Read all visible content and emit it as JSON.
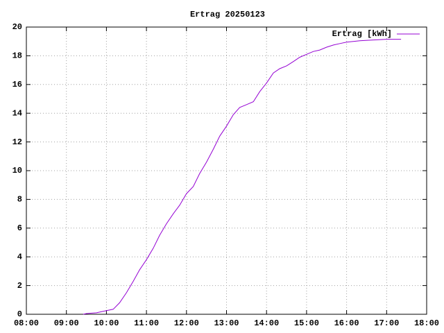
{
  "chart_data": {
    "type": "line",
    "title": "Ertrag 20250123",
    "x": [
      9.42,
      9.5,
      9.75,
      10.0,
      10.17,
      10.33,
      10.5,
      10.67,
      10.83,
      11.0,
      11.17,
      11.33,
      11.5,
      11.67,
      11.83,
      12.0,
      12.17,
      12.33,
      12.5,
      12.67,
      12.83,
      13.0,
      13.17,
      13.33,
      13.5,
      13.67,
      13.83,
      14.0,
      14.17,
      14.33,
      14.5,
      14.67,
      14.83,
      15.0,
      15.17,
      15.33,
      15.5,
      15.67,
      15.83,
      16.0,
      16.33,
      16.67,
      17.0,
      17.36
    ],
    "series": [
      {
        "name": "Ertrag [kWh]",
        "color": "#9400d3",
        "values": [
          0,
          0.05,
          0.1,
          0.25,
          0.35,
          0.8,
          1.5,
          2.3,
          3.1,
          3.8,
          4.6,
          5.5,
          6.3,
          7.0,
          7.6,
          8.4,
          8.9,
          9.8,
          10.6,
          11.5,
          12.4,
          13.1,
          13.9,
          14.4,
          14.6,
          14.8,
          15.5,
          16.1,
          16.8,
          17.1,
          17.3,
          17.6,
          17.9,
          18.1,
          18.3,
          18.4,
          18.6,
          18.75,
          18.85,
          18.95,
          19.05,
          19.1,
          19.15,
          19.15
        ]
      }
    ],
    "xlim": [
      8,
      18
    ],
    "xticks": [
      {
        "value": 8,
        "label": "08:00"
      },
      {
        "value": 9,
        "label": "09:00"
      },
      {
        "value": 10,
        "label": "10:00"
      },
      {
        "value": 11,
        "label": "11:00"
      },
      {
        "value": 12,
        "label": "12:00"
      },
      {
        "value": 13,
        "label": "13:00"
      },
      {
        "value": 14,
        "label": "14:00"
      },
      {
        "value": 15,
        "label": "15:00"
      },
      {
        "value": 16,
        "label": "16:00"
      },
      {
        "value": 17,
        "label": "17:00"
      },
      {
        "value": 18,
        "label": "18:00"
      }
    ],
    "ylim": [
      0,
      20
    ],
    "yticks": [
      0,
      2,
      4,
      6,
      8,
      10,
      12,
      14,
      16,
      18,
      20
    ],
    "grid": true,
    "legend": "top-right"
  }
}
